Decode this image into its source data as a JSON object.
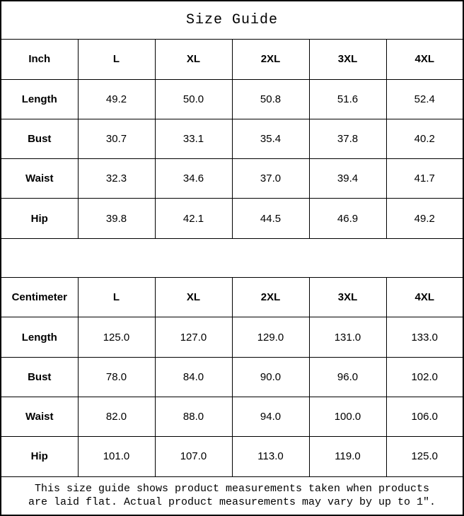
{
  "title": "Size Guide",
  "tables": [
    {
      "unit_label": "Inch",
      "columns": [
        "L",
        "XL",
        "2XL",
        "3XL",
        "4XL"
      ],
      "rows": [
        {
          "label": "Length",
          "values": [
            "49.2",
            "50.0",
            "50.8",
            "51.6",
            "52.4"
          ]
        },
        {
          "label": "Bust",
          "values": [
            "30.7",
            "33.1",
            "35.4",
            "37.8",
            "40.2"
          ]
        },
        {
          "label": "Waist",
          "values": [
            "32.3",
            "34.6",
            "37.0",
            "39.4",
            "41.7"
          ]
        },
        {
          "label": "Hip",
          "values": [
            "39.8",
            "42.1",
            "44.5",
            "46.9",
            "49.2"
          ]
        }
      ]
    },
    {
      "unit_label": "Centimeter",
      "columns": [
        "L",
        "XL",
        "2XL",
        "3XL",
        "4XL"
      ],
      "rows": [
        {
          "label": "Length",
          "values": [
            "125.0",
            "127.0",
            "129.0",
            "131.0",
            "133.0"
          ]
        },
        {
          "label": "Bust",
          "values": [
            "78.0",
            "84.0",
            "90.0",
            "96.0",
            "102.0"
          ]
        },
        {
          "label": "Waist",
          "values": [
            "82.0",
            "88.0",
            "94.0",
            "100.0",
            "106.0"
          ]
        },
        {
          "label": "Hip",
          "values": [
            "101.0",
            "107.0",
            "113.0",
            "119.0",
            "125.0"
          ]
        }
      ]
    }
  ],
  "footnote": {
    "line1": "This size guide shows product measurements taken when products",
    "line2": "are laid flat. Actual product measurements may vary by up to 1″."
  },
  "colors": {
    "border": "#000000",
    "text": "#000000",
    "background": "#ffffff"
  }
}
